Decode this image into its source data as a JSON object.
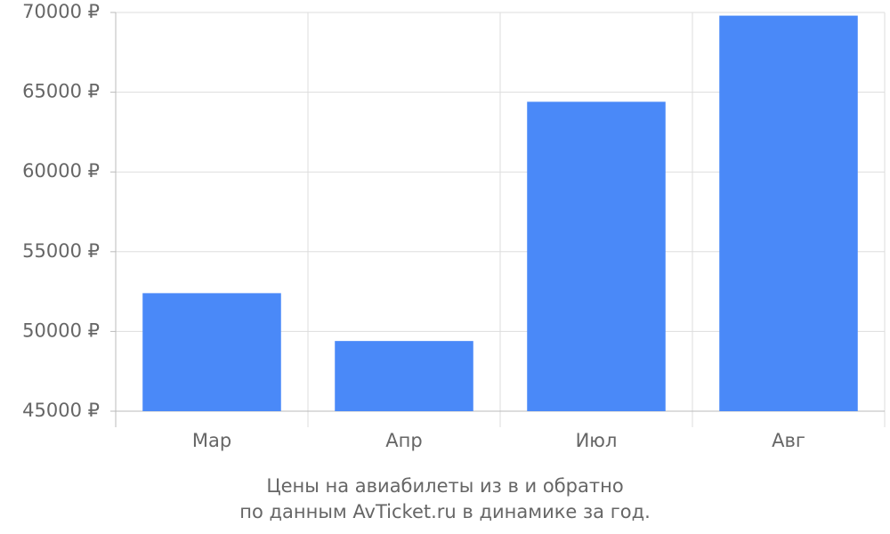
{
  "chart_data": {
    "type": "bar",
    "title": [
      "Цены на авиабилеты из  в  и обратно",
      "по данным AvTicket.ru в динамике за год."
    ],
    "categories": [
      "Мар",
      "Апр",
      "Июл",
      "Авг"
    ],
    "values": [
      52400,
      49400,
      64400,
      69800
    ],
    "color": "#4a89f8",
    "ylim": [
      45000,
      70000
    ],
    "yticks": [
      {
        "value": 45000,
        "label": "45000 ₽"
      },
      {
        "value": 50000,
        "label": "50000 ₽"
      },
      {
        "value": 55000,
        "label": "55000 ₽"
      },
      {
        "value": 60000,
        "label": "60000 ₽"
      },
      {
        "value": 65000,
        "label": "65000 ₽"
      },
      {
        "value": 70000,
        "label": "70000 ₽"
      }
    ],
    "grid": true
  }
}
